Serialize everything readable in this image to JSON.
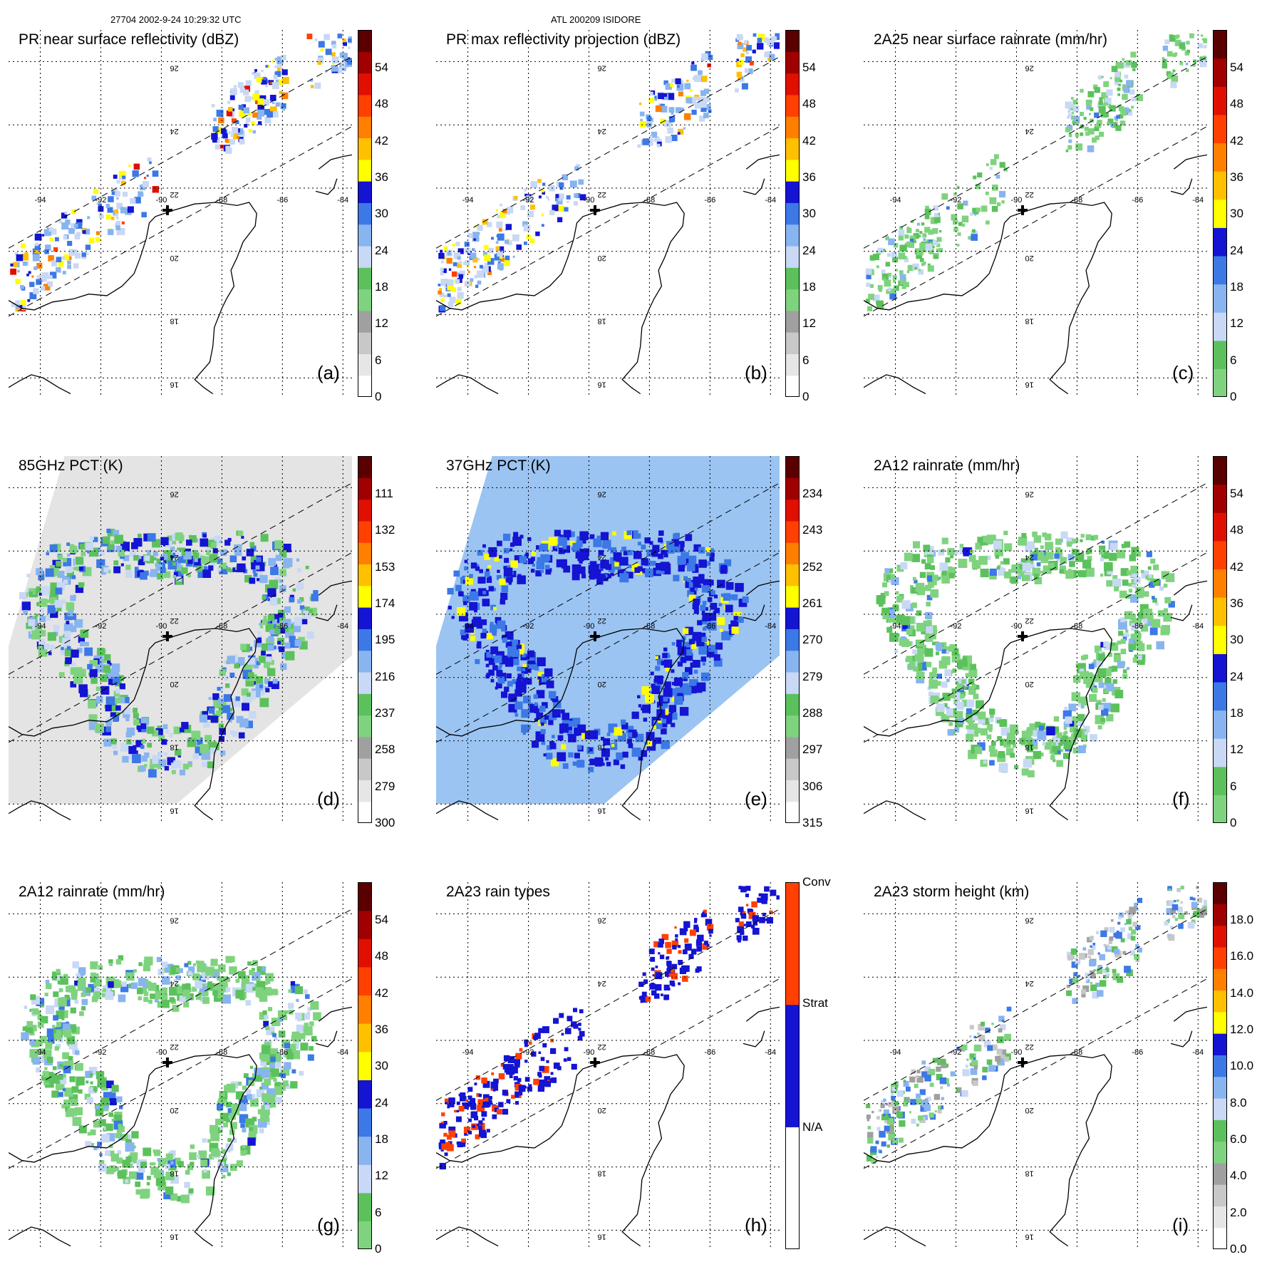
{
  "header": {
    "left": "27704 2002-9-24 10:29:32 UTC",
    "center": "ATL 200209 ISIDORE"
  },
  "lon_labels": [
    "-94",
    "-92",
    "-90",
    "-88",
    "-86",
    "-84"
  ],
  "lat_labels": [
    "26",
    "24",
    "22",
    "20",
    "18",
    "16"
  ],
  "panels": [
    {
      "id": "a",
      "title": "PR near surface reflectivity (dBZ)",
      "label": "(a)",
      "palette": "dbz",
      "field": "pr",
      "ticks": [
        "54",
        "48",
        "42",
        "36",
        "30",
        "24",
        "18",
        "12",
        "6",
        "0"
      ]
    },
    {
      "id": "b",
      "title": "PR max reflectivity projection (dBZ)",
      "label": "(b)",
      "palette": "dbz",
      "field": "pr",
      "ticks": [
        "54",
        "48",
        "42",
        "36",
        "30",
        "24",
        "18",
        "12",
        "6",
        "0"
      ]
    },
    {
      "id": "c",
      "title": "2A25 near surface rainrate (mm/hr)",
      "label": "(c)",
      "palette": "rain",
      "field": "pr",
      "ticks": [
        "54",
        "48",
        "42",
        "36",
        "30",
        "24",
        "18",
        "12",
        "6",
        "0"
      ]
    },
    {
      "id": "d",
      "title": "85GHz PCT (K)",
      "label": "(d)",
      "palette": "pct85",
      "field": "tmi",
      "ticks": [
        "111",
        "132",
        "153",
        "174",
        "195",
        "216",
        "237",
        "258",
        "279",
        "300"
      ]
    },
    {
      "id": "e",
      "title": "37GHz PCT (K)",
      "label": "(e)",
      "palette": "pct37",
      "field": "tmi",
      "ticks": [
        "234",
        "243",
        "252",
        "261",
        "270",
        "279",
        "288",
        "297",
        "306",
        "315"
      ]
    },
    {
      "id": "f",
      "title": "2A12 rainrate (mm/hr)",
      "label": "(f)",
      "palette": "rain",
      "field": "tmi",
      "ticks": [
        "54",
        "48",
        "42",
        "36",
        "30",
        "24",
        "18",
        "12",
        "6",
        "0"
      ]
    },
    {
      "id": "g",
      "title": "2A12 rainrate (mm/hr)",
      "label": "(g)",
      "palette": "rain",
      "field": "tmi",
      "ticks": [
        "54",
        "48",
        "42",
        "36",
        "30",
        "24",
        "18",
        "12",
        "6",
        "0"
      ]
    },
    {
      "id": "h",
      "title": "2A23 rain types",
      "label": "(h)",
      "palette": "types",
      "field": "pr",
      "ticks": [
        "Conv",
        "Strat",
        "N/A"
      ]
    },
    {
      "id": "i",
      "title": "2A23 storm height (km)",
      "label": "(i)",
      "palette": "height",
      "field": "pr",
      "ticks": [
        "18.0",
        "16.0",
        "14.0",
        "12.0",
        "10.0",
        "8.0",
        "6.0",
        "4.0",
        "2.0",
        "0.0"
      ]
    }
  ],
  "colors": {
    "dbz": [
      "#ffffff",
      "#e6e6e6",
      "#c8c8c8",
      "#a0a0a0",
      "#7fd37f",
      "#5cc15c",
      "#c8d8f5",
      "#88b4f0",
      "#3c78e6",
      "#1414d2",
      "#ffff00",
      "#ffc000",
      "#ff8000",
      "#ff4000",
      "#e01000",
      "#a00000",
      "#5a0000"
    ],
    "rain": [
      "#7fd37f",
      "#5cc15c",
      "#c8d8f5",
      "#88b4f0",
      "#3c78e6",
      "#1414d2",
      "#ffff00",
      "#ffc000",
      "#ff8000",
      "#ff4000",
      "#e01000",
      "#a00000",
      "#5a0000"
    ],
    "pct85": [
      "#ffffff",
      "#e6e6e6",
      "#c8c8c8",
      "#a0a0a0",
      "#7fd37f",
      "#5cc15c",
      "#c8d8f5",
      "#88b4f0",
      "#3c78e6",
      "#1414d2",
      "#ffff00",
      "#ffc000",
      "#ff8000",
      "#ff4000",
      "#e01000",
      "#a00000",
      "#5a0000"
    ],
    "pct37": [
      "#ffffff",
      "#e6e6e6",
      "#c8c8c8",
      "#a0a0a0",
      "#7fd37f",
      "#5cc15c",
      "#c8d8f5",
      "#88b4f0",
      "#3c78e6",
      "#1414d2",
      "#ffff00",
      "#ffc000",
      "#ff8000",
      "#ff4000",
      "#e01000",
      "#a00000",
      "#5a0000"
    ],
    "types": [
      "#ffffff",
      "#1414d2",
      "#ff4000"
    ],
    "height": [
      "#ffffff",
      "#e6e6e6",
      "#c8c8c8",
      "#a0a0a0",
      "#7fd37f",
      "#5cc15c",
      "#c8d8f5",
      "#88b4f0",
      "#3c78e6",
      "#1414d2",
      "#ffff00",
      "#ffc000",
      "#ff8000",
      "#ff4000",
      "#e01000",
      "#a00000",
      "#5a0000"
    ]
  }
}
